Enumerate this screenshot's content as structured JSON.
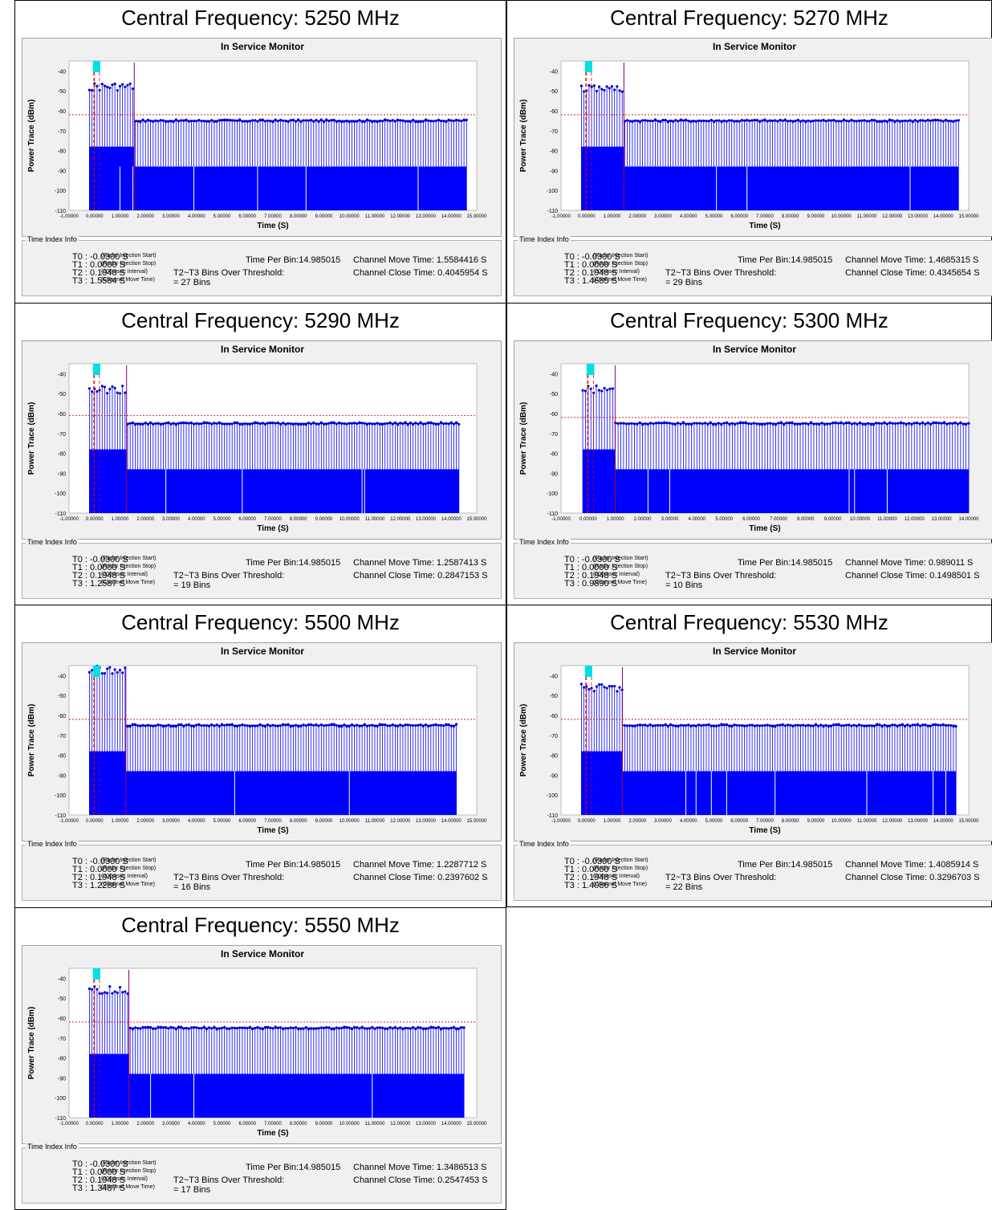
{
  "chart_data": [
    {
      "type": "line",
      "cell_title": "Central Frequency: 5250 MHz",
      "title": "In Service Monitor",
      "xlabel": "Time (S)",
      "ylabel": "Power Trace (dBm)",
      "xlim": [
        -1,
        15
      ],
      "ylim": [
        -110,
        -35
      ],
      "threshold": -62,
      "end_time": 14.6,
      "inj_level": -46,
      "t3": 1.5584,
      "t0": -0.03,
      "t2": 0.1948,
      "dips": [
        1.0,
        1.5,
        3.9,
        6.4,
        8.3,
        12.7
      ],
      "info": {
        "T0": "T0 : -0.0300  S",
        "T1": "T1 : 0.0000  S",
        "T2": "T2 : 0.1948  S",
        "T3": "T3 : 1.5584  S",
        "tpb": "Time Per Bin:14.985015",
        "bins_label": "T2~T3 Bins Over Threshold:",
        "bins": "= 27 Bins",
        "move": "Channel Move Time: 1.5584416  S",
        "close": "Channel Close Time: 0.4045954  S"
      }
    },
    {
      "type": "line",
      "cell_title": "Central Frequency: 5270 MHz",
      "title": "In Service Monitor",
      "xlabel": "Time (S)",
      "ylabel": "Power Trace (dBm)",
      "xlim": [
        -1,
        15
      ],
      "ylim": [
        -110,
        -35
      ],
      "threshold": -62,
      "end_time": 14.6,
      "inj_level": -47,
      "t3": 1.4685,
      "t0": -0.03,
      "t2": 0.1948,
      "dips": [
        5.1,
        6.3,
        12.7
      ],
      "info": {
        "T0": "T0 : -0.0300  S",
        "T1": "T1 : 0.0000  S",
        "T2": "T2 : 0.1948  S",
        "T3": "T3 : 1.4685  S",
        "tpb": "Time Per Bin:14.985015",
        "bins_label": "T2~T3 Bins Over Threshold:",
        "bins": "= 29 Bins",
        "move": "Channel Move Time: 1.4685315  S",
        "close": "Channel Close Time: 0.4345654  S"
      }
    },
    {
      "type": "line",
      "cell_title": "Central Frequency: 5290 MHz",
      "title": "In Service Monitor",
      "xlabel": "Time (S)",
      "ylabel": "Power Trace (dBm)",
      "xlim": [
        -1,
        15
      ],
      "ylim": [
        -110,
        -35
      ],
      "threshold": -61,
      "end_time": 14.3,
      "inj_level": -46,
      "t3": 1.2587,
      "t0": -0.03,
      "t2": 0.1948,
      "dips": [
        2.8,
        5.8,
        10.5,
        10.6
      ],
      "info": {
        "T0": "T0 : -0.0300  S",
        "T1": "T1 : 0.0000  S",
        "T2": "T2 : 0.1948  S",
        "T3": "T3 : 1.2587  S",
        "tpb": "Time Per Bin:14.985015",
        "bins_label": "T2~T3 Bins Over Threshold:",
        "bins": "= 19 Bins",
        "move": "Channel Move Time: 1.2587413  S",
        "close": "Channel Close Time: 0.2847153  S"
      }
    },
    {
      "type": "line",
      "cell_title": "Central Frequency: 5300 MHz",
      "title": "In Service Monitor",
      "xlabel": "Time (S)",
      "ylabel": "Power Trace (dBm)",
      "xlim": [
        -1,
        14
      ],
      "ylim": [
        -110,
        -35
      ],
      "threshold": -62,
      "end_time": 14.0,
      "inj_level": -46,
      "t3": 0.989,
      "t0": -0.03,
      "t2": 0.1948,
      "dips": [
        2.2,
        3.0,
        9.6,
        9.8,
        11.0
      ],
      "info": {
        "T0": "T0 : -0.0300  S",
        "T1": "T1 : 0.0000  S",
        "T2": "T2 : 0.1948  S",
        "T3": "T3 : 0.9890  S",
        "tpb": "Time Per Bin:14.985015",
        "bins_label": "T2~T3 Bins Over Threshold:",
        "bins": "= 10 Bins",
        "move": "Channel Move Time: 0.989011  S",
        "close": "Channel Close Time: 0.1498501  S"
      }
    },
    {
      "type": "line",
      "cell_title": "Central Frequency: 5500 MHz",
      "title": "In Service Monitor",
      "xlabel": "Time (S)",
      "ylabel": "Power Trace (dBm)",
      "xlim": [
        -1,
        15
      ],
      "ylim": [
        -110,
        -35
      ],
      "threshold": -62,
      "end_time": 14.2,
      "inj_level": -35,
      "t3": 1.2288,
      "t0": -0.03,
      "t2": 0.1948,
      "dips": [
        5.5,
        10.0
      ],
      "info": {
        "T0": "T0 : -0.0300  S",
        "T1": "T1 : 0.0000  S",
        "T2": "T2 : 0.1948  S",
        "T3": "T3 : 1.2288  S",
        "tpb": "Time Per Bin:14.985015",
        "bins_label": "T2~T3 Bins Over Threshold:",
        "bins": "= 16 Bins",
        "move": "Channel Move Time: 1.2287712  S",
        "close": "Channel Close Time: 0.2397602  S"
      }
    },
    {
      "type": "line",
      "cell_title": "Central Frequency: 5530 MHz",
      "title": "In Service Monitor",
      "xlabel": "Time (S)",
      "ylabel": "Power Trace (dBm)",
      "xlim": [
        -1,
        15
      ],
      "ylim": [
        -110,
        -35
      ],
      "threshold": -62,
      "end_time": 14.5,
      "inj_level": -44,
      "t3": 1.4086,
      "t0": -0.03,
      "t2": 0.1948,
      "dips": [
        3.9,
        4.3,
        4.9,
        5.5,
        7.4,
        11.0,
        13.6,
        14.1
      ],
      "info": {
        "T0": "T0 : -0.0300  S",
        "T1": "T1 : 0.0000  S",
        "T2": "T2 : 0.1948  S",
        "T3": "T3 : 1.4086  S",
        "tpb": "Time Per Bin:14.985015",
        "bins_label": "T2~T3 Bins Over Threshold:",
        "bins": "= 22 Bins",
        "move": "Channel Move Time: 1.4085914  S",
        "close": "Channel Close Time: 0.3296703  S"
      }
    },
    {
      "type": "line",
      "cell_title": "Central Frequency: 5550 MHz",
      "title": "In Service Monitor",
      "xlabel": "Time (S)",
      "ylabel": "Power Trace (dBm)",
      "xlim": [
        -1,
        15
      ],
      "ylim": [
        -110,
        -35
      ],
      "threshold": -62,
      "end_time": 14.5,
      "inj_level": -44,
      "t3": 1.3487,
      "t0": -0.03,
      "t2": 0.1948,
      "dips": [
        2.2,
        3.9,
        10.9
      ],
      "info": {
        "T0": "T0 : -0.0300  S",
        "T1": "T1 : 0.0000  S",
        "T2": "T2 : 0.1948  S",
        "T3": "T3 : 1.3487  S",
        "tpb": "Time Per Bin:14.985015",
        "bins_label": "T2~T3 Bins Over Threshold:",
        "bins": "= 17 Bins",
        "move": "Channel Move Time: 1.3486513  S",
        "close": "Channel Close Time: 0.2547453  S"
      }
    }
  ],
  "common": {
    "info_legend": "Time Index Info",
    "t0_note": "(Radar Injection Start)",
    "t1_note": "(Radar Injection Stop)",
    "t2_note": "(200msec Interval)",
    "t3_note": "(Channel Move Time)",
    "colors": {
      "trace": "#0000ff",
      "marker": "#0000cc",
      "threshold": "#cc0000",
      "t_line": "#800080",
      "highlight": "#00e0e0"
    }
  }
}
